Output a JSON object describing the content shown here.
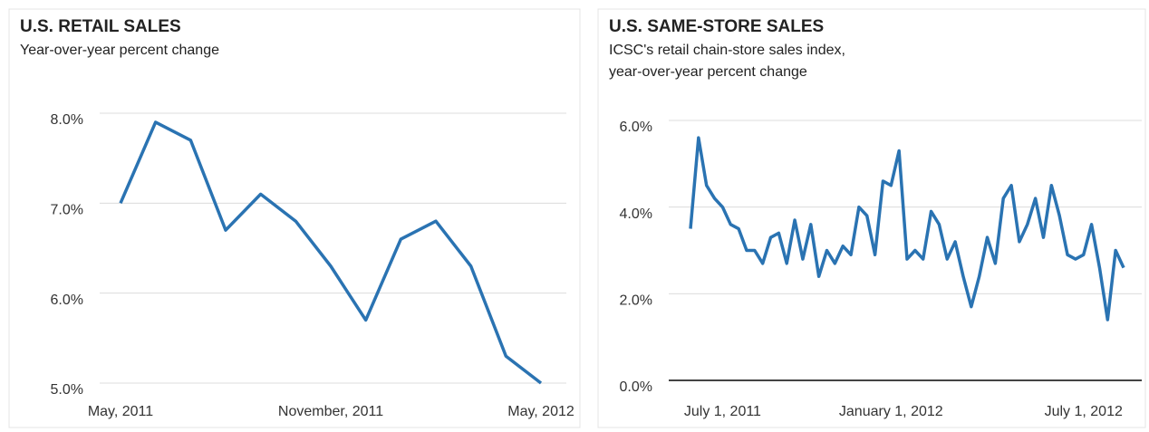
{
  "chart_data": [
    {
      "type": "line",
      "title": "U.S. RETAIL SALES",
      "subtitle": "Year-over-year percent change",
      "categories": [
        "May, 2011",
        null,
        null,
        null,
        null,
        null,
        "November, 2011",
        null,
        null,
        null,
        null,
        null,
        "May, 2012"
      ],
      "series": [
        {
          "name": "Retail sales",
          "color": "#2a73b2",
          "values": [
            7.0,
            7.9,
            7.7,
            6.7,
            7.1,
            6.8,
            6.3,
            5.7,
            6.6,
            6.8,
            6.3,
            5.3,
            5.0
          ]
        }
      ],
      "ylim": [
        5,
        8
      ],
      "yticks": [
        {
          "value": 5,
          "label": "5.0%"
        },
        {
          "value": 6,
          "label": "6.0%"
        },
        {
          "value": 7,
          "label": "7.0%"
        },
        {
          "value": 8,
          "label": "8.0%"
        }
      ],
      "grid": true
    },
    {
      "type": "line",
      "title": "U.S. SAME-STORE SALES",
      "subtitle": [
        "ICSC's retail chain-store sales index,",
        "year-over-year percent change"
      ],
      "categories": [
        null,
        null,
        null,
        null,
        "July 1, 2011",
        null,
        null,
        null,
        null,
        null,
        null,
        null,
        null,
        null,
        null,
        null,
        null,
        null,
        null,
        null,
        null,
        null,
        null,
        null,
        null,
        "January 1, 2012",
        null,
        null,
        null,
        null,
        null,
        null,
        null,
        null,
        null,
        null,
        null,
        null,
        null,
        null,
        null,
        null,
        null,
        null,
        null,
        null,
        null,
        null,
        null,
        "July 1, 2012",
        null,
        null,
        null,
        null,
        null
      ],
      "series": [
        {
          "name": "Same-store sales",
          "color": "#2a73b2",
          "values": [
            3.5,
            5.6,
            4.5,
            4.2,
            4.0,
            3.6,
            3.5,
            3.0,
            3.0,
            2.7,
            3.3,
            3.4,
            2.7,
            3.7,
            2.8,
            3.6,
            2.4,
            3.0,
            2.7,
            3.1,
            2.9,
            4.0,
            3.8,
            2.9,
            4.6,
            4.5,
            5.3,
            2.8,
            3.0,
            2.8,
            3.9,
            3.6,
            2.8,
            3.2,
            2.4,
            1.7,
            2.4,
            3.3,
            2.7,
            4.2,
            4.5,
            3.2,
            3.6,
            4.2,
            3.3,
            4.5,
            3.8,
            2.9,
            2.8,
            2.9,
            3.6,
            2.6,
            1.4,
            3.0,
            2.6
          ]
        }
      ],
      "ylim": [
        0,
        6
      ],
      "yticks": [
        {
          "value": 0,
          "label": "0.0%"
        },
        {
          "value": 2,
          "label": "2.0%"
        },
        {
          "value": 4,
          "label": "4.0%"
        },
        {
          "value": 6,
          "label": "6.0%"
        }
      ],
      "grid": true
    }
  ]
}
